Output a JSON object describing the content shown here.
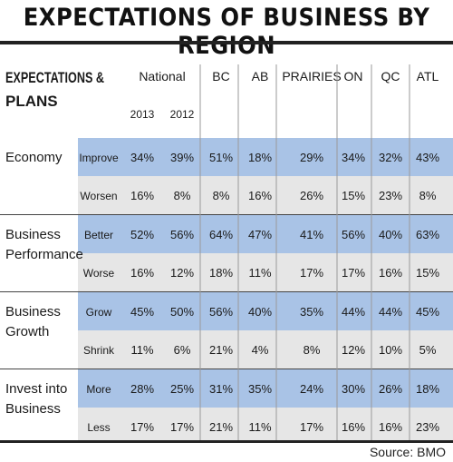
{
  "title": "EXPECTATIONS OF BUSINESS BY REGION",
  "source": "Source: BMO",
  "colors": {
    "row_blue": "#a9c3e6",
    "row_gray": "#e6e6e6",
    "rule": "#222222",
    "divider": "#9a9a9a"
  },
  "chart_data": {
    "type": "table",
    "title": "EXPECTATIONS OF BUSINESS BY REGION",
    "header": {
      "first_col": [
        "EXPECTATIONS &",
        "PLANS"
      ],
      "national_label": "National",
      "years": [
        "2013",
        "2012"
      ],
      "regions": [
        "BC",
        "AB",
        "PRAIRIES",
        "ON",
        "QC",
        "ATL"
      ]
    },
    "groups": [
      {
        "label_lines": [
          "Economy"
        ],
        "rows": [
          {
            "label": "Improve",
            "values": [
              "34%",
              "39%",
              "51%",
              "18%",
              "29%",
              "34%",
              "32%",
              "43%"
            ]
          },
          {
            "label": "Worsen",
            "values": [
              "16%",
              "8%",
              "8%",
              "16%",
              "26%",
              "15%",
              "23%",
              "8%"
            ]
          }
        ]
      },
      {
        "label_lines": [
          "Business",
          "Performance"
        ],
        "rows": [
          {
            "label": "Better",
            "values": [
              "52%",
              "56%",
              "64%",
              "47%",
              "41%",
              "56%",
              "40%",
              "63%"
            ]
          },
          {
            "label": "Worse",
            "values": [
              "16%",
              "12%",
              "18%",
              "11%",
              "17%",
              "17%",
              "16%",
              "15%"
            ]
          }
        ]
      },
      {
        "label_lines": [
          "Business",
          "Growth"
        ],
        "rows": [
          {
            "label": "Grow",
            "values": [
              "45%",
              "50%",
              "56%",
              "40%",
              "35%",
              "44%",
              "44%",
              "45%"
            ]
          },
          {
            "label": "Shrink",
            "values": [
              "11%",
              "6%",
              "21%",
              "4%",
              "8%",
              "12%",
              "10%",
              "5%"
            ]
          }
        ]
      },
      {
        "label_lines": [
          "Invest into",
          "Business"
        ],
        "rows": [
          {
            "label": "More",
            "values": [
              "28%",
              "25%",
              "31%",
              "35%",
              "24%",
              "30%",
              "26%",
              "18%"
            ]
          },
          {
            "label": "Less",
            "values": [
              "17%",
              "17%",
              "21%",
              "11%",
              "17%",
              "16%",
              "16%",
              "23%"
            ]
          }
        ]
      }
    ]
  }
}
